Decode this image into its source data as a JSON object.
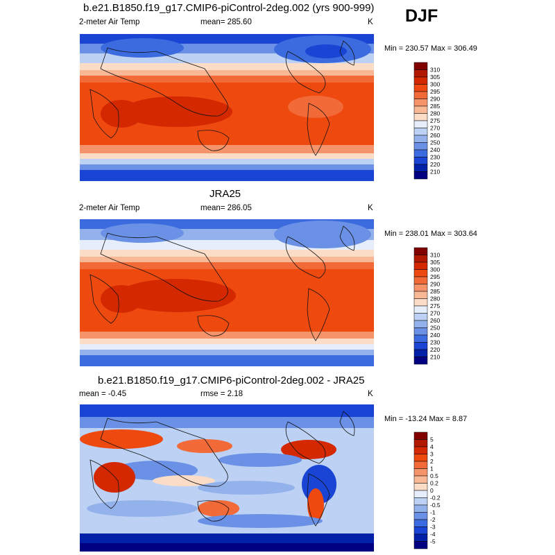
{
  "season": "DJF",
  "panels": [
    {
      "title": "b.e21.B1850.f19_g17.CMIP6-piControl-2deg.002 (yrs 900-999)",
      "left_label": "2-meter Air Temp",
      "center_label": "mean= 285.60",
      "units": "K",
      "minmax": "Min = 230.57 Max = 306.49",
      "colorbar_labels": [
        "310",
        "305",
        "300",
        "295",
        "290",
        "285",
        "280",
        "275",
        "270",
        "260",
        "250",
        "240",
        "230",
        "220",
        "210"
      ]
    },
    {
      "title": "JRA25",
      "left_label": "2-meter Air Temp",
      "center_label": "mean= 286.05",
      "units": "K",
      "minmax": "Min = 238.01 Max = 303.64",
      "colorbar_labels": [
        "310",
        "305",
        "300",
        "295",
        "290",
        "285",
        "280",
        "275",
        "270",
        "260",
        "250",
        "240",
        "230",
        "220",
        "210"
      ]
    },
    {
      "title": "b.e21.B1850.f19_g17.CMIP6-piControl-2deg.002 - JRA25",
      "left_label": "mean =  -0.45",
      "center_label": "rmse =   2.18",
      "units": "K",
      "minmax": "Min = -13.24 Max =   8.87",
      "colorbar_labels": [
        "5",
        "4",
        "3",
        "2",
        "1",
        "0.5",
        "0.2",
        "0",
        "-0.2",
        "-0.5",
        "-1",
        "-2",
        "-3",
        "-4",
        "-5"
      ]
    }
  ],
  "colors": {
    "palette": [
      "#800000",
      "#b01800",
      "#d42800",
      "#ee4a10",
      "#f26a38",
      "#f5936a",
      "#f8b896",
      "#fbdcc6",
      "#e6eefb",
      "#bcd1f4",
      "#93b2ec",
      "#6a91e5",
      "#3c6be0",
      "#1a44d4",
      "#0020a8",
      "#000080"
    ]
  }
}
